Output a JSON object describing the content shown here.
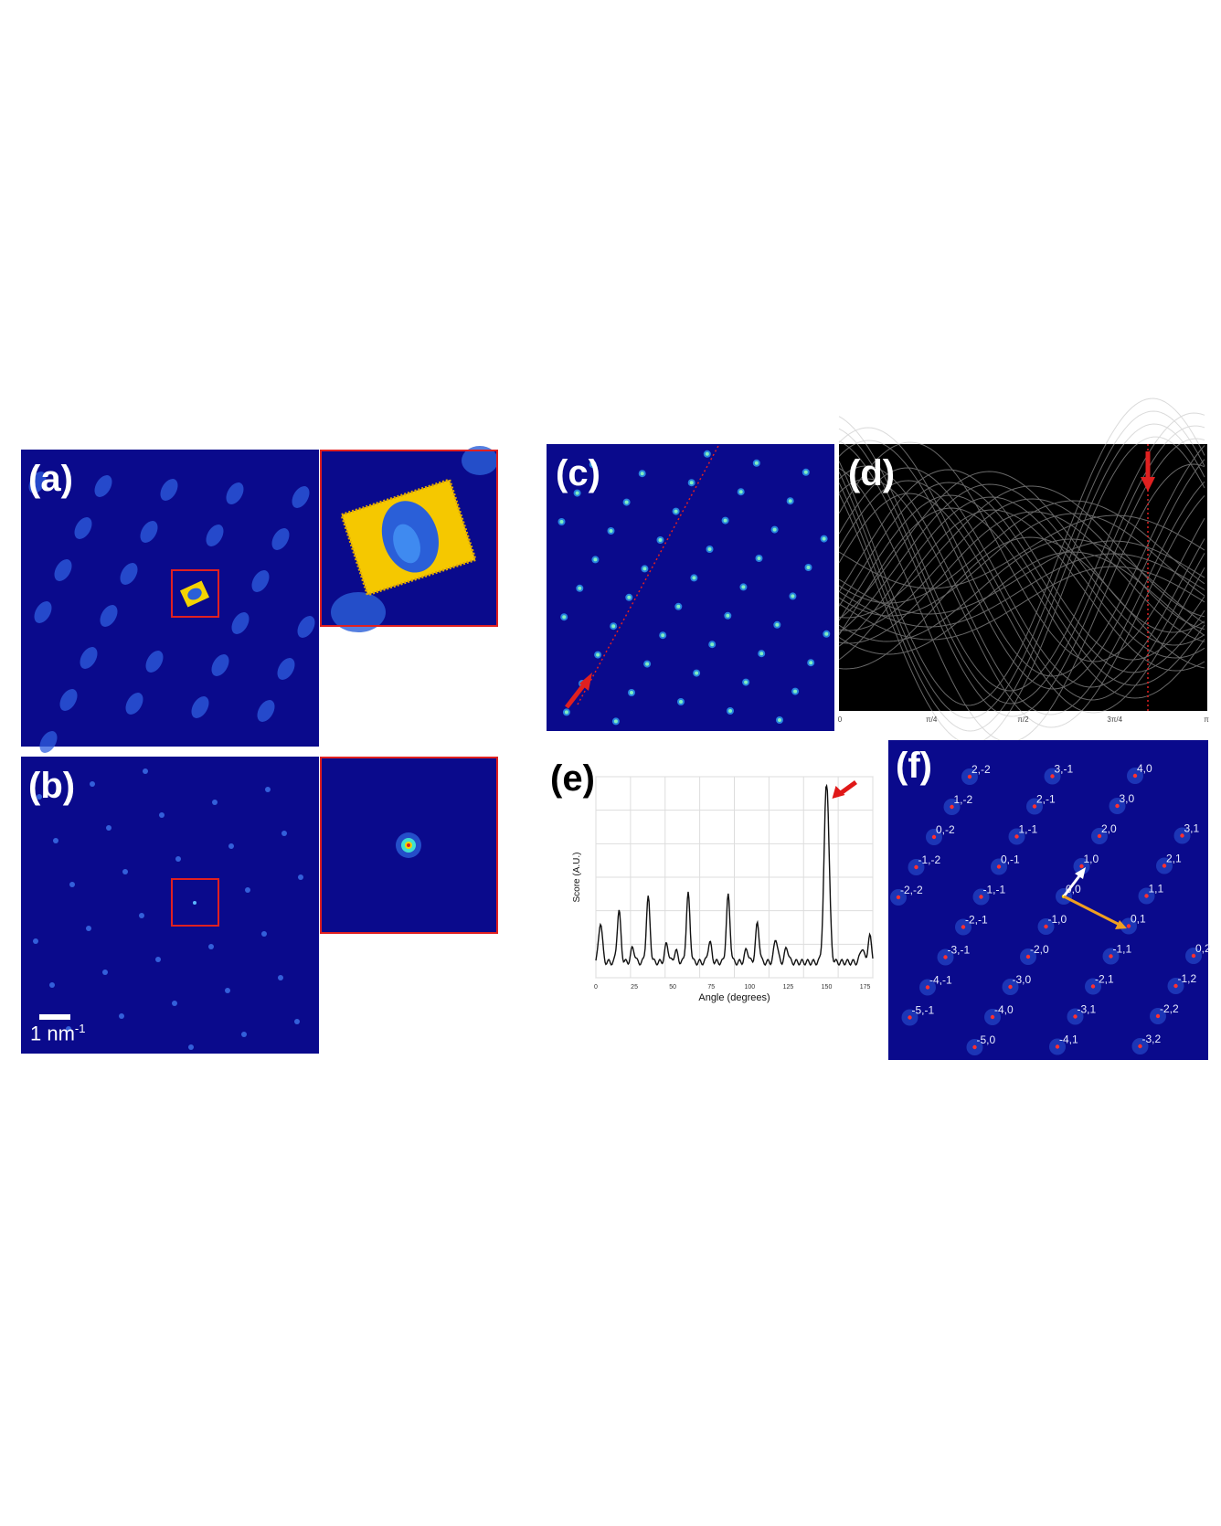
{
  "figure": {
    "panel_labels": {
      "a": "(a)",
      "b": "(b)",
      "c": "(c)",
      "d": "(d)",
      "e": "(e)",
      "f": "(f)"
    },
    "scalebar": {
      "number": "1 nm",
      "superscript": "-1"
    },
    "colors": {
      "map_background": "#0a0a8c",
      "spot": "#3b6ee8",
      "inset_border": "#e02020",
      "highlight_yellow": "#f5d300",
      "arrow_red": "#e01818",
      "arrow_orange": "#f0a020",
      "arrow_white": "#ffffff",
      "hough_background": "#000000"
    },
    "panel_d_ticks": [
      "0",
      "π/4",
      "π/2",
      "3π/4",
      "π"
    ],
    "panel_f_labels": [
      "2,-2",
      "3,-1",
      "4,0",
      "1,-2",
      "2,-1",
      "3,0",
      "0,-2",
      "1,-1",
      "2,0",
      "3,1",
      "-1,-2",
      "0,-1",
      "1,0",
      "2,1",
      "-2,-2",
      "-1,-1",
      "0,0",
      "1,1",
      "-2,-1",
      "-1,0",
      "0,1",
      "-3,-1",
      "-2,0",
      "-1,1",
      "0,2",
      "-4,-1",
      "-3,0",
      "-2,1",
      "-1,2",
      "-5,-1",
      "-4,0",
      "-3,1",
      "-2,2",
      "-5,0",
      "-4,1",
      "-3,2"
    ]
  },
  "chart_data": {
    "type": "line",
    "title": "",
    "xlabel": "Angle (degrees)",
    "ylabel": "Score (A.U.)",
    "xlim": [
      0,
      180
    ],
    "ylim": [
      0,
      1.0
    ],
    "xticks": [
      0,
      25,
      50,
      75,
      100,
      125,
      150,
      175
    ],
    "grid": true,
    "peaks": [
      {
        "x": 3,
        "y": 0.22
      },
      {
        "x": 15,
        "y": 0.28
      },
      {
        "x": 24,
        "y": 0.08
      },
      {
        "x": 34,
        "y": 0.35
      },
      {
        "x": 46,
        "y": 0.1
      },
      {
        "x": 52,
        "y": 0.06
      },
      {
        "x": 60,
        "y": 0.37
      },
      {
        "x": 74,
        "y": 0.11
      },
      {
        "x": 86,
        "y": 0.36
      },
      {
        "x": 98,
        "y": 0.07
      },
      {
        "x": 105,
        "y": 0.21
      },
      {
        "x": 117,
        "y": 0.13
      },
      {
        "x": 124,
        "y": 0.08
      },
      {
        "x": 150,
        "y": 1.0
      },
      {
        "x": 173,
        "y": 0.08
      },
      {
        "x": 178,
        "y": 0.14
      }
    ],
    "baseline": 0.02,
    "annotation": "red arrow at the maximum near 150°"
  }
}
